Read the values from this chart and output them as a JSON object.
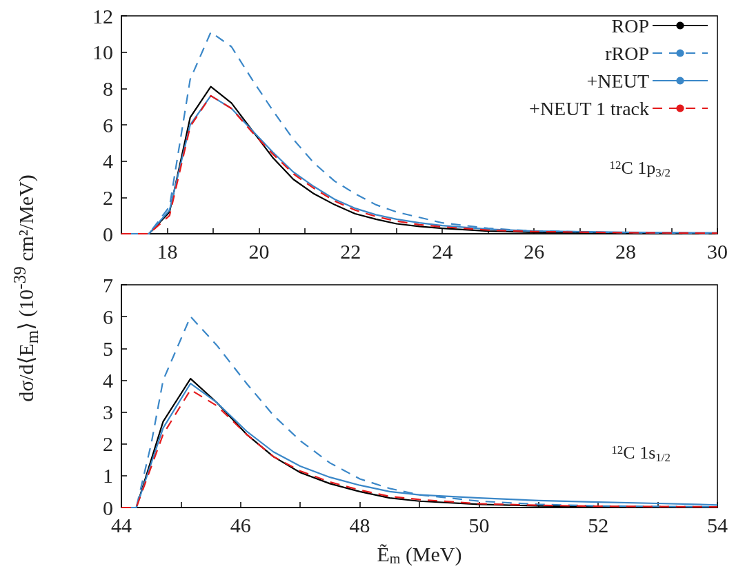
{
  "chart_data": [
    {
      "type": "line",
      "ylabel": "dσ/d⟨E$_{m}$⟩ (10$^{-39}$ cm²/MeV)",
      "annotations": [
        "$^{12}$C 1p$_{3/2}$"
      ],
      "xlim": [
        17,
        30
      ],
      "xticks": [
        18,
        {
          "value": 19,
          "label": null
        },
        20,
        {
          "value": 21,
          "label": null
        },
        22,
        {
          "value": 23,
          "label": null
        },
        24,
        {
          "value": 25,
          "label": null
        },
        26,
        {
          "value": 27,
          "label": null
        },
        28,
        {
          "value": 29,
          "label": null
        },
        30
      ],
      "ylim": [
        0,
        12
      ],
      "yticks": [
        0,
        2,
        4,
        6,
        8,
        10,
        12
      ],
      "legend": "top right",
      "grid": false,
      "marker": "none",
      "series": [
        {
          "name": "ROP",
          "color": "#000000",
          "line_style": "solid",
          "x": [
            17,
            17.6,
            18.05,
            18.5,
            18.95,
            19.4,
            19.85,
            20.3,
            20.75,
            21.2,
            21.65,
            22.1,
            22.55,
            23,
            23.5,
            24,
            25,
            26,
            28,
            30
          ],
          "values": [
            0,
            0,
            1.2,
            6.4,
            8.1,
            7.2,
            5.7,
            4.2,
            3.0,
            2.2,
            1.6,
            1.1,
            0.8,
            0.55,
            0.4,
            0.3,
            0.15,
            0.08,
            0.03,
            0.01
          ]
        },
        {
          "name": "rROP",
          "color": "#3a87c8",
          "line_style": "dashed",
          "x": [
            17,
            17.6,
            18.05,
            18.5,
            18.95,
            19.4,
            19.85,
            20.3,
            20.75,
            21.2,
            21.65,
            22.1,
            22.55,
            23,
            23.5,
            24,
            25,
            26,
            28,
            30
          ],
          "values": [
            0,
            0,
            1.5,
            8.5,
            11.1,
            10.3,
            8.5,
            6.8,
            5.2,
            3.9,
            2.9,
            2.2,
            1.6,
            1.2,
            0.9,
            0.6,
            0.3,
            0.15,
            0.06,
            0.02
          ]
        },
        {
          "name": "+NEUT",
          "color": "#3a87c8",
          "line_style": "solid",
          "x": [
            17,
            17.6,
            18.05,
            18.5,
            18.95,
            19.4,
            19.85,
            20.3,
            20.75,
            21.2,
            21.65,
            22.1,
            22.55,
            23,
            23.5,
            24,
            25,
            26,
            28,
            30
          ],
          "values": [
            0,
            0,
            1.3,
            6.0,
            7.6,
            6.9,
            5.7,
            4.5,
            3.4,
            2.6,
            1.9,
            1.4,
            1.05,
            0.8,
            0.6,
            0.45,
            0.25,
            0.15,
            0.08,
            0.05
          ]
        },
        {
          "name": "+NEUT 1 track",
          "color": "#e41a1c",
          "line_style": "dashed",
          "x": [
            17,
            17.6,
            18.05,
            18.5,
            18.95,
            19.4,
            19.85,
            20.3,
            20.75,
            21.2,
            21.65,
            22.1,
            22.55,
            23,
            23.5,
            24,
            25,
            26,
            28,
            30
          ],
          "values": [
            0,
            0,
            1.0,
            5.9,
            7.6,
            6.9,
            5.6,
            4.4,
            3.3,
            2.5,
            1.8,
            1.3,
            0.95,
            0.7,
            0.5,
            0.38,
            0.2,
            0.12,
            0.06,
            0.03
          ]
        }
      ]
    },
    {
      "type": "line",
      "xlabel": "Ẽ$_{m}$ (MeV)",
      "annotations": [
        "$^{12}$C 1s$_{1/2}$"
      ],
      "xlim": [
        44,
        54
      ],
      "xticks": [
        44,
        {
          "value": 45,
          "label": null
        },
        46,
        {
          "value": 47,
          "label": null
        },
        48,
        {
          "value": 49,
          "label": null
        },
        50,
        {
          "value": 51,
          "label": null
        },
        52,
        {
          "value": 53,
          "label": null
        },
        54
      ],
      "ylim": [
        0,
        7
      ],
      "yticks": [
        0,
        1,
        2,
        3,
        4,
        5,
        6,
        7
      ],
      "grid": false,
      "marker": "none",
      "series": [
        {
          "color": "#000000",
          "line_style": "solid",
          "x": [
            44,
            44.25,
            44.7,
            45.16,
            45.6,
            46.1,
            46.55,
            47,
            47.5,
            48,
            48.5,
            49,
            50,
            51,
            52,
            54
          ],
          "values": [
            0,
            0,
            2.7,
            4.05,
            3.3,
            2.3,
            1.6,
            1.1,
            0.75,
            0.5,
            0.3,
            0.2,
            0.1,
            0.05,
            0.03,
            0.01
          ]
        },
        {
          "color": "#3a87c8",
          "line_style": "dashed",
          "x": [
            44,
            44.25,
            44.5,
            44.7,
            45.16,
            45.6,
            46.1,
            46.55,
            47,
            47.5,
            48,
            48.5,
            49,
            50,
            51,
            52,
            54
          ],
          "values": [
            0,
            0,
            2.0,
            4.0,
            6.0,
            5.1,
            3.9,
            2.9,
            2.1,
            1.4,
            0.9,
            0.6,
            0.4,
            0.2,
            0.1,
            0.05,
            0.02
          ]
        },
        {
          "color": "#3a87c8",
          "line_style": "solid",
          "x": [
            44,
            44.25,
            44.7,
            45.16,
            45.6,
            46.1,
            46.55,
            47,
            47.5,
            48,
            48.5,
            49,
            50,
            51,
            52,
            53,
            54
          ],
          "values": [
            0,
            0,
            2.5,
            3.9,
            3.3,
            2.4,
            1.75,
            1.3,
            0.95,
            0.7,
            0.5,
            0.4,
            0.3,
            0.22,
            0.17,
            0.13,
            0.08
          ]
        },
        {
          "color": "#e41a1c",
          "line_style": "dashed",
          "x": [
            44,
            44.25,
            44.7,
            45.16,
            45.6,
            46.1,
            46.55,
            47,
            47.5,
            48,
            48.5,
            49,
            50,
            51,
            52,
            54
          ],
          "values": [
            0,
            0,
            2.3,
            3.7,
            3.2,
            2.3,
            1.6,
            1.15,
            0.8,
            0.55,
            0.35,
            0.25,
            0.12,
            0.07,
            0.04,
            0.02
          ]
        }
      ]
    }
  ]
}
